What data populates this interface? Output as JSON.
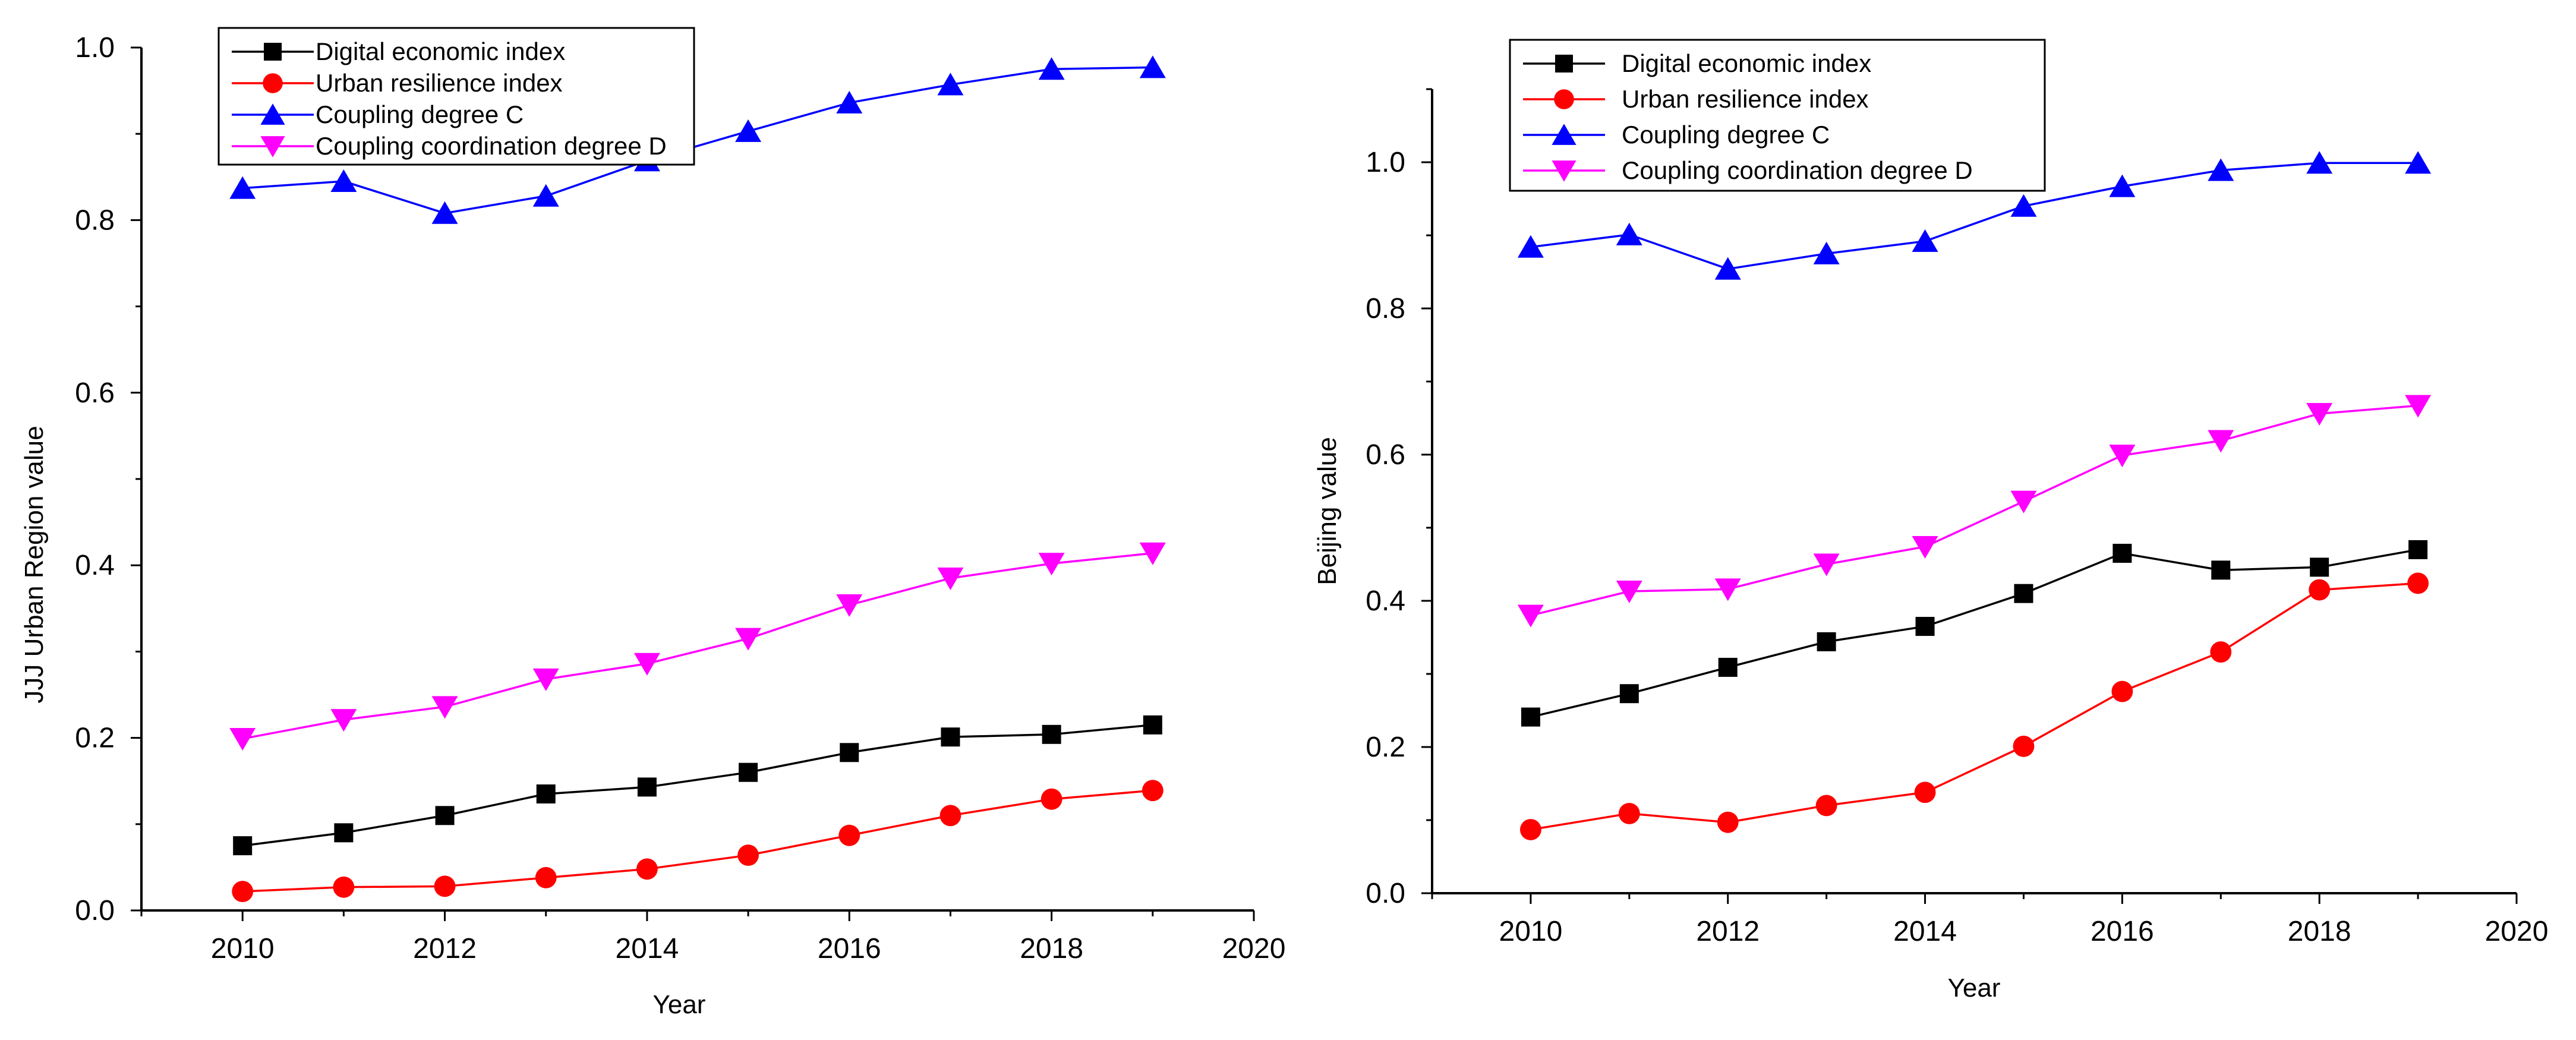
{
  "chart_data": [
    {
      "type": "line",
      "title": "",
      "xlabel": "Year",
      "ylabel": "JJJ Urban Region value",
      "xlim": [
        2009,
        2020
      ],
      "ylim": [
        0,
        1.0
      ],
      "xticks": [
        2010,
        2012,
        2014,
        2016,
        2018,
        2020
      ],
      "yticks": [
        0.0,
        0.2,
        0.4,
        0.6,
        0.8,
        1.0
      ],
      "xtick_labels": [
        "2010",
        "2012",
        "2014",
        "2016",
        "2018",
        "2020"
      ],
      "ytick_labels": [
        "0.0",
        "0.2",
        "0.4",
        "0.6",
        "0.8",
        "1.0"
      ],
      "legend_position": "top-left",
      "x": [
        2010,
        2011,
        2012,
        2013,
        2014,
        2015,
        2016,
        2017,
        2018,
        2019
      ],
      "series": [
        {
          "name": "Digital economic index",
          "color": "#000000",
          "marker": "square",
          "values": [
            0.075,
            0.09,
            0.11,
            0.135,
            0.143,
            0.16,
            0.183,
            0.201,
            0.204,
            0.215
          ]
        },
        {
          "name": "Urban resilience index",
          "color": "#ff0000",
          "marker": "circle",
          "values": [
            0.022,
            0.027,
            0.028,
            0.038,
            0.048,
            0.064,
            0.087,
            0.11,
            0.129,
            0.139
          ]
        },
        {
          "name": "Coupling degree C",
          "color": "#0000ff",
          "marker": "triangle-up",
          "values": [
            0.837,
            0.845,
            0.808,
            0.828,
            0.869,
            0.903,
            0.936,
            0.957,
            0.975,
            0.977
          ]
        },
        {
          "name": "Coupling coordination degree D",
          "color": "#ff00ff",
          "marker": "triangle-down",
          "values": [
            0.199,
            0.221,
            0.236,
            0.268,
            0.286,
            0.315,
            0.354,
            0.385,
            0.402,
            0.414
          ]
        }
      ]
    },
    {
      "type": "line",
      "title": "",
      "xlabel": "Year",
      "ylabel": "Beijing value",
      "xlim": [
        2009,
        2020
      ],
      "ylim": [
        0,
        1.1
      ],
      "xticks": [
        2010,
        2012,
        2014,
        2016,
        2018,
        2020
      ],
      "yticks": [
        0.0,
        0.2,
        0.4,
        0.6,
        0.8,
        1.0
      ],
      "xtick_labels": [
        "2010",
        "2012",
        "2014",
        "2016",
        "2018",
        "2020"
      ],
      "ytick_labels": [
        "0.0",
        "0.2",
        "0.4",
        "0.6",
        "0.8",
        "1.0"
      ],
      "legend_position": "top-left",
      "x": [
        2010,
        2011,
        2012,
        2013,
        2014,
        2015,
        2016,
        2017,
        2018,
        2019
      ],
      "series": [
        {
          "name": "Digital economic index",
          "color": "#000000",
          "marker": "square",
          "values": [
            0.241,
            0.273,
            0.309,
            0.344,
            0.365,
            0.41,
            0.465,
            0.442,
            0.446,
            0.47
          ]
        },
        {
          "name": "Urban resilience index",
          "color": "#ff0000",
          "marker": "circle",
          "values": [
            0.087,
            0.109,
            0.097,
            0.12,
            0.138,
            0.201,
            0.276,
            0.33,
            0.415,
            0.424
          ]
        },
        {
          "name": "Coupling degree C",
          "color": "#0000ff",
          "marker": "triangle-up",
          "values": [
            0.884,
            0.901,
            0.854,
            0.875,
            0.892,
            0.94,
            0.967,
            0.989,
            0.999,
            0.999
          ]
        },
        {
          "name": "Coupling coordination degree D",
          "color": "#ff00ff",
          "marker": "triangle-down",
          "values": [
            0.38,
            0.413,
            0.416,
            0.45,
            0.474,
            0.536,
            0.599,
            0.619,
            0.656,
            0.667
          ]
        }
      ]
    }
  ]
}
